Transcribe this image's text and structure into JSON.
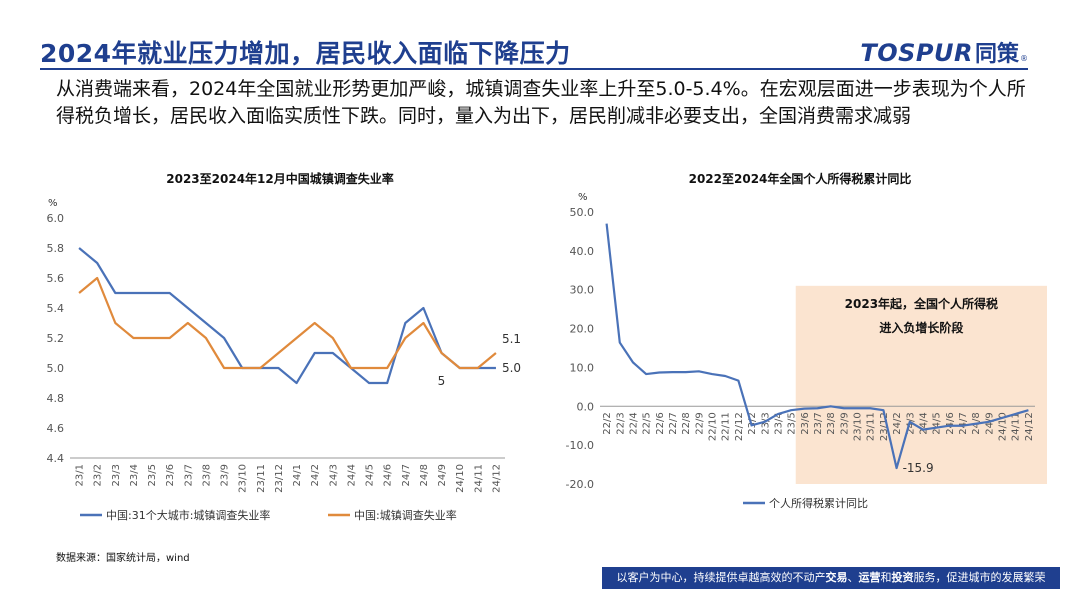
{
  "header": {
    "title": "2024年就业压力增加，居民收入面临下降压力",
    "logo": {
      "main": "TOSPUR",
      "cn": "同策",
      "mark": "®"
    }
  },
  "body": {
    "text": "从消费端来看，2024年全国就业形势更加严峻，城镇调查失业率上升至5.0-5.4%。在宏观层面进一步表现为个人所得税负增长，居民收入面临实质性下跌。同时，量入为出下，居民削减非必要支出，全国消费需求减弱"
  },
  "footer": {
    "source": "数据来源：国家统计局，wind",
    "slogan_parts": [
      "以客户为中心，持续提供卓越高效的不动产",
      "交易",
      "、",
      "运营",
      "和",
      "投资",
      "服务，促进城市的发展繁荣"
    ]
  },
  "colors": {
    "brand": "#1f3f8f",
    "blue_series": "#4a72b8",
    "orange_series": "#e08a3c",
    "highlight": "#fbe4d0"
  },
  "chart_data": [
    {
      "type": "line",
      "title": "2023至2024年12月中国城镇调查失业率",
      "ylabel": "%",
      "ylim": [
        4.4,
        6.0
      ],
      "yticks": [
        "4.4",
        "4.6",
        "4.8",
        "5.0",
        "5.2",
        "5.4",
        "5.6",
        "5.8",
        "6.0"
      ],
      "x": [
        "23/1",
        "23/2",
        "23/3",
        "23/4",
        "23/5",
        "23/6",
        "23/7",
        "23/8",
        "23/9",
        "23/10",
        "23/11",
        "23/12",
        "24/1",
        "24/2",
        "24/3",
        "24/4",
        "24/5",
        "24/6",
        "24/7",
        "24/8",
        "24/9",
        "24/10",
        "24/11",
        "24/12"
      ],
      "series": [
        {
          "name": "中国:31个大城市:城镇调查失业率",
          "color": "#4a72b8",
          "values": [
            5.8,
            5.7,
            5.5,
            5.5,
            5.5,
            5.5,
            5.4,
            5.3,
            5.2,
            5.0,
            5.0,
            5.0,
            4.9,
            5.1,
            5.1,
            5.0,
            4.9,
            4.9,
            5.3,
            5.4,
            5.1,
            5.0,
            5.0,
            5.0
          ]
        },
        {
          "name": "中国:城镇调查失业率",
          "color": "#e08a3c",
          "values": [
            5.5,
            5.6,
            5.3,
            5.2,
            5.2,
            5.2,
            5.3,
            5.2,
            5.0,
            5.0,
            5.0,
            5.1,
            5.2,
            5.3,
            5.2,
            5.0,
            5.0,
            5.0,
            5.2,
            5.3,
            5.1,
            5.0,
            5.0,
            5.1
          ]
        }
      ],
      "annotations": [
        "5.1",
        "5.0",
        "5"
      ],
      "grid": false,
      "legend": "bottom"
    },
    {
      "type": "line",
      "title": "2022至2024年全国个人所得税累计同比",
      "ylabel": "%",
      "ylim": [
        -20.0,
        50.0
      ],
      "yticks": [
        "-20.0",
        "-10.0",
        "0.0",
        "10.0",
        "20.0",
        "30.0",
        "40.0",
        "50.0"
      ],
      "x": [
        "22/2",
        "22/3",
        "22/4",
        "22/5",
        "22/6",
        "22/7",
        "22/8",
        "22/9",
        "22/10",
        "22/11",
        "22/12",
        "23/2",
        "23/3",
        "23/4",
        "23/5",
        "23/6",
        "23/7",
        "23/8",
        "23/9",
        "23/10",
        "23/11",
        "23/12",
        "24/2",
        "24/3",
        "24/4",
        "24/5",
        "24/6",
        "24/7",
        "24/8",
        "24/9",
        "24/10",
        "24/11",
        "24/12"
      ],
      "series": [
        {
          "name": "个人所得税累计同比",
          "color": "#4a72b8",
          "values": [
            47.0,
            16.4,
            11.3,
            8.3,
            8.7,
            8.8,
            8.8,
            9.0,
            8.3,
            7.8,
            6.6,
            -4.9,
            -4.0,
            -2.0,
            -1.0,
            -0.6,
            -0.5,
            0.0,
            -0.5,
            -0.5,
            -0.5,
            -1.0,
            -15.9,
            -4.0,
            -6.0,
            -5.5,
            -5.0,
            -5.0,
            -4.5,
            -4.0,
            -3.0,
            -2.0,
            -1.0
          ]
        }
      ],
      "annotations": [
        "-15.9"
      ],
      "highlight": {
        "from": "23/6",
        "to": "24/12",
        "text_lines": [
          "2023年起，全国个人所得税",
          "进入负增长阶段"
        ]
      },
      "grid": false,
      "legend": "bottom"
    }
  ]
}
